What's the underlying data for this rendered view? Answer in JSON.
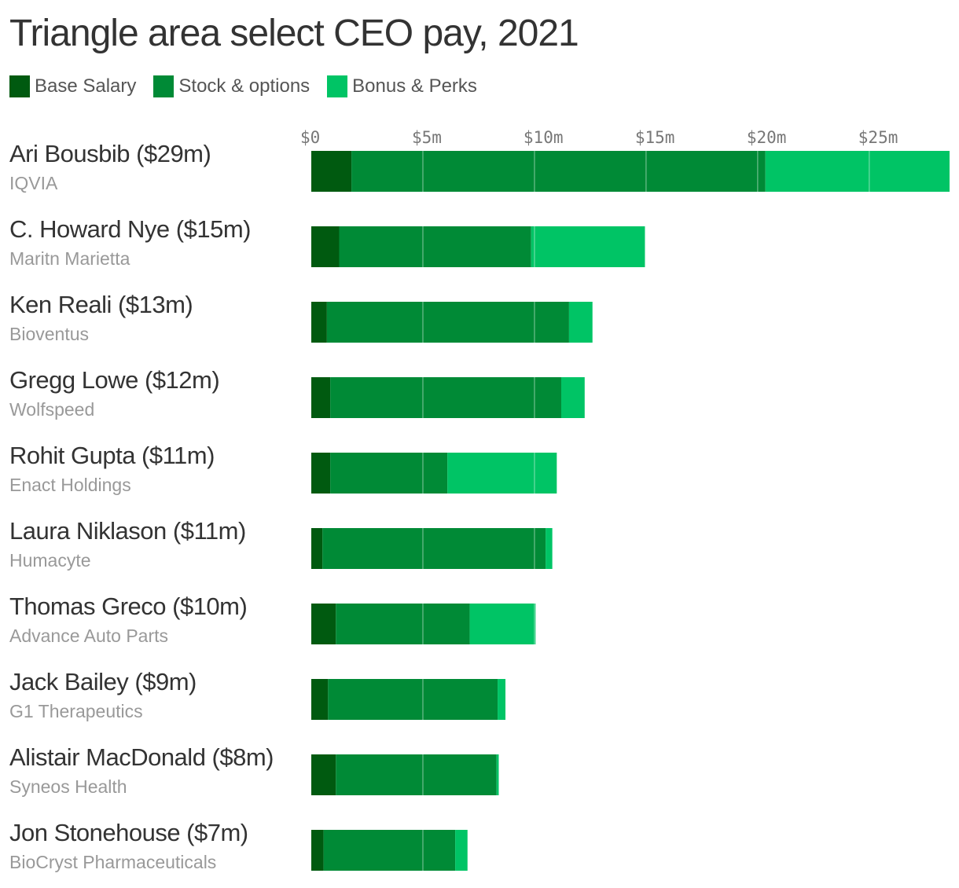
{
  "chart_data": {
    "type": "bar",
    "orientation": "horizontal",
    "stacked": true,
    "title": "Triangle area select CEO pay, 2021",
    "legend_position": "top-left",
    "grid": true,
    "xlim": [
      0,
      28.6
    ],
    "x_ticks": [
      0,
      5,
      10,
      15,
      20,
      25
    ],
    "x_tick_labels": [
      "$0",
      "$5m",
      "$10m",
      "$15m",
      "$20m",
      "$25m"
    ],
    "series": [
      {
        "name": "Base Salary",
        "color": "#005a10",
        "values": [
          1.8,
          1.25,
          0.7,
          0.85,
          0.85,
          0.5,
          1.1,
          0.75,
          1.1,
          0.55
        ]
      },
      {
        "name": "Stock & options",
        "color": "#008a36",
        "values": [
          18.55,
          8.6,
          10.85,
          10.35,
          5.25,
          10.0,
          6.0,
          7.6,
          7.2,
          5.9
        ]
      },
      {
        "name": "Bonus & Perks",
        "color": "#00c465",
        "values": [
          8.25,
          5.1,
          1.05,
          1.05,
          4.9,
          0.3,
          2.95,
          0.35,
          0.1,
          0.55
        ]
      }
    ],
    "rows": [
      {
        "name": "Ari Bousbib ($29m)",
        "company": "IQVIA"
      },
      {
        "name": "C. Howard Nye ($15m)",
        "company": "Maritn Marietta"
      },
      {
        "name": "Ken Reali ($13m)",
        "company": "Bioventus"
      },
      {
        "name": "Gregg Lowe ($12m)",
        "company": "Wolfspeed"
      },
      {
        "name": "Rohit Gupta ($11m)",
        "company": "Enact Holdings"
      },
      {
        "name": "Laura Niklason ($11m)",
        "company": "Humacyte"
      },
      {
        "name": "Thomas Greco ($10m)",
        "company": "Advance Auto Parts"
      },
      {
        "name": "Jack Bailey ($9m)",
        "company": "G1 Therapeutics"
      },
      {
        "name": "Alistair MacDonald ($8m)",
        "company": "Syneos Health"
      },
      {
        "name": "Jon Stonehouse ($7m)",
        "company": "BioCryst Pharmaceuticals"
      }
    ]
  }
}
